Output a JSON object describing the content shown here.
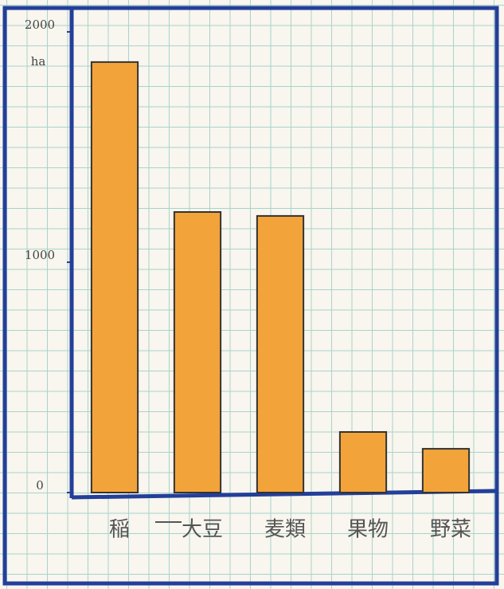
{
  "chart_data": {
    "type": "bar",
    "ylabel": "ha",
    "categories": [
      "稲",
      "大豆",
      "麦類",
      "果物",
      "野菜"
    ],
    "values": [
      1869,
      1218,
      1201,
      263,
      190
    ],
    "color": "#f2a43a",
    "ylim": [
      0,
      2000
    ],
    "yticks": [
      0,
      1000,
      2000
    ]
  }
}
